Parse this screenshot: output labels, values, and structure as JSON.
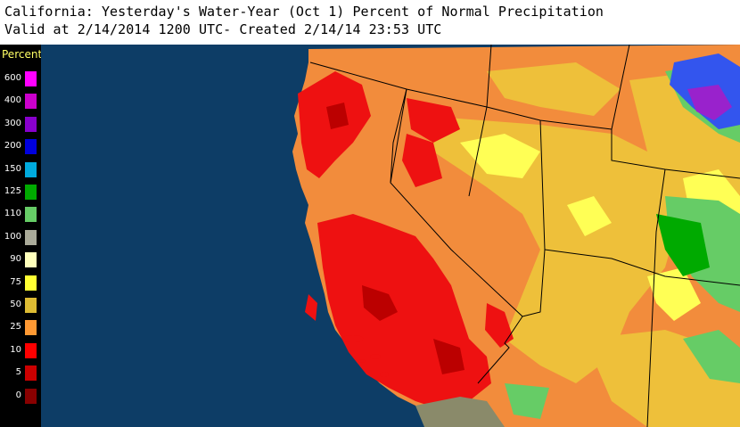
{
  "header": {
    "line1": "California: Yesterday's Water-Year (Oct 1) Percent of Normal Precipitation",
    "line2": "Valid at 2/14/2014 1200 UTC- Created 2/14/14 23:53 UTC"
  },
  "legend": {
    "title": "Percent",
    "entries": [
      {
        "label": "600",
        "color": "#ff00ff"
      },
      {
        "label": "400",
        "color": "#cc00cc"
      },
      {
        "label": "300",
        "color": "#8800cc"
      },
      {
        "label": "200",
        "color": "#0000dd"
      },
      {
        "label": "150",
        "color": "#00aadd"
      },
      {
        "label": "125",
        "color": "#00aa00"
      },
      {
        "label": "110",
        "color": "#66cc66"
      },
      {
        "label": "100",
        "color": "#aaaa99"
      },
      {
        "label": "90",
        "color": "#ffffbb"
      },
      {
        "label": "75",
        "color": "#ffff33"
      },
      {
        "label": "50",
        "color": "#ddbb33"
      },
      {
        "label": "25",
        "color": "#ff9933"
      },
      {
        "label": "10",
        "color": "#ff0000"
      },
      {
        "label": "5",
        "color": "#cc0000"
      },
      {
        "label": "0",
        "color": "#880000"
      }
    ]
  },
  "map": {
    "ocean_color": "#0d3d66",
    "dominant_color": "#f28c3c",
    "border_color": "#000000"
  }
}
